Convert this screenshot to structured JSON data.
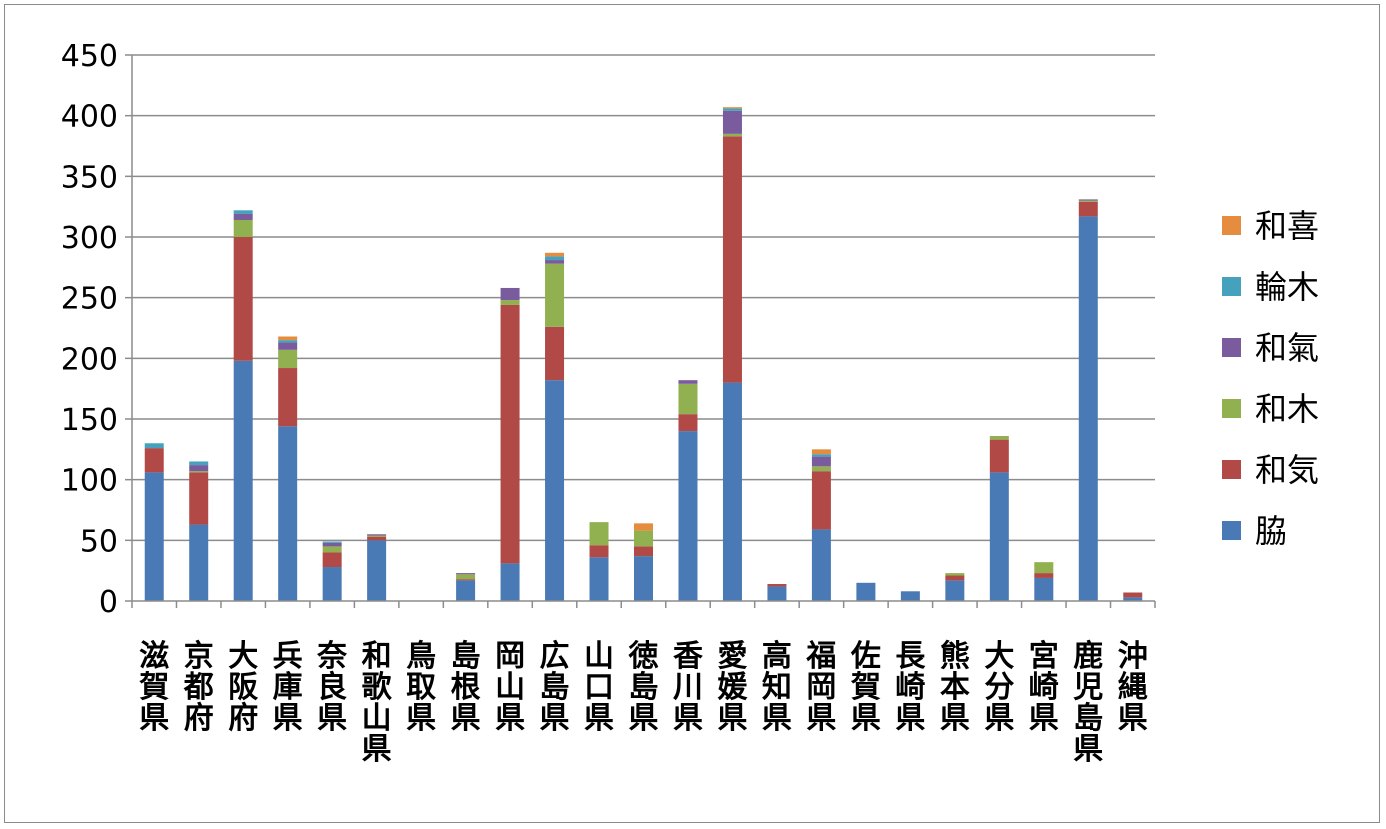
{
  "chart_data": {
    "type": "bar",
    "stacked": true,
    "title": "",
    "xlabel": "",
    "ylabel": "",
    "ylim": [
      0,
      450
    ],
    "yticks": [
      0,
      50,
      100,
      150,
      200,
      250,
      300,
      350,
      400,
      450
    ],
    "ytick_labels": [
      "0",
      "50",
      "100",
      "150",
      "200",
      "250",
      "300",
      "350",
      "400",
      "450"
    ],
    "grid": true,
    "legend_position": "right",
    "categories": [
      "滋賀県",
      "京都府",
      "大阪府",
      "兵庫県",
      "奈良県",
      "和歌山県",
      "鳥取県",
      "島根県",
      "岡山県",
      "広島県",
      "山口県",
      "徳島県",
      "香川県",
      "愛媛県",
      "高知県",
      "福岡県",
      "佐賀県",
      "長崎県",
      "熊本県",
      "大分県",
      "宮崎県",
      "鹿児島県",
      "沖縄県"
    ],
    "series": [
      {
        "name": "脇",
        "color": "#4a7ab5",
        "values": [
          106,
          63,
          198,
          144,
          28,
          50,
          0,
          17,
          31,
          182,
          36,
          37,
          140,
          180,
          12,
          59,
          15,
          8,
          17,
          106,
          19,
          317,
          3
        ]
      },
      {
        "name": "和気",
        "color": "#b14a47",
        "values": [
          20,
          43,
          102,
          48,
          12,
          3,
          0,
          1,
          213,
          44,
          10,
          8,
          14,
          203,
          2,
          48,
          0,
          0,
          4,
          27,
          4,
          12,
          4
        ]
      },
      {
        "name": "和木",
        "color": "#91b04f",
        "values": [
          0,
          1,
          14,
          15,
          5,
          1,
          0,
          4,
          4,
          52,
          19,
          13,
          25,
          2,
          0,
          4,
          0,
          0,
          2,
          3,
          9,
          1,
          0
        ]
      },
      {
        "name": "和氣",
        "color": "#7a5c9e",
        "values": [
          0,
          5,
          5,
          6,
          3,
          1,
          0,
          1,
          10,
          3,
          0,
          0,
          3,
          19,
          0,
          8,
          0,
          0,
          0,
          0,
          0,
          1,
          0
        ]
      },
      {
        "name": "輪木",
        "color": "#45a1bc",
        "values": [
          4,
          3,
          3,
          2,
          1,
          0,
          0,
          0,
          0,
          3,
          0,
          0,
          0,
          2,
          0,
          2,
          0,
          0,
          0,
          0,
          0,
          0,
          0
        ]
      },
      {
        "name": "和喜",
        "color": "#e58c3e",
        "values": [
          0,
          0,
          0,
          3,
          0,
          0,
          0,
          0,
          0,
          3,
          0,
          6,
          0,
          1,
          0,
          4,
          0,
          0,
          0,
          0,
          0,
          0,
          0
        ]
      }
    ],
    "legend_order": [
      "和喜",
      "輪木",
      "和氣",
      "和木",
      "和気",
      "脇"
    ]
  }
}
